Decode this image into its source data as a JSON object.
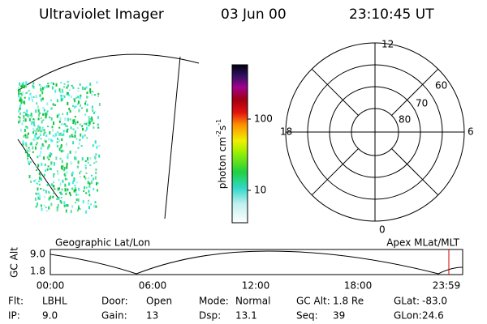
{
  "header": {
    "instrument": "Ultraviolet Imager",
    "date": "03 Jun 00",
    "time": "23:10:45 UT"
  },
  "colorbar": {
    "unit_label": "photon cm",
    "unit_exp1": "-2",
    "unit_s": "s",
    "unit_exp2": "-1",
    "ticks": [
      "100",
      "10"
    ]
  },
  "polar": {
    "mlt_labels": [
      "12",
      "18",
      "6",
      "0"
    ],
    "lat_labels": [
      "60",
      "70",
      "80"
    ]
  },
  "orbit": {
    "left_title": "Geographic Lat/Lon",
    "right_title": "Apex MLat/MLT",
    "y_label": "GC Alt",
    "yticks": [
      "9.0",
      "1.8"
    ],
    "xticks": [
      "00:00",
      "06:00",
      "12:00",
      "18:00",
      "23:59"
    ]
  },
  "status": [
    [
      {
        "label": "Flt:",
        "value": "LBHL"
      },
      {
        "label": "Door:",
        "value": "Open"
      },
      {
        "label": "Mode:",
        "value": "Normal"
      },
      {
        "label": "GC Alt:",
        "value": "1.8 Re"
      },
      {
        "label": "GLat:",
        "value": "-83.0"
      }
    ],
    [
      {
        "label": "IP:",
        "value": "9.0"
      },
      {
        "label": "Gain:",
        "value": "13"
      },
      {
        "label": "Dsp:",
        "value": "13.1"
      },
      {
        "label": "Seq:",
        "value": "39"
      },
      {
        "label": "GLon:",
        "value": "24.6"
      }
    ]
  ]
}
